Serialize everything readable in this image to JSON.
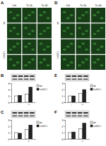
{
  "panel_labels": [
    "A",
    "B",
    "C",
    "D",
    "E",
    "F"
  ],
  "micrographs": [
    {
      "columns": [
        "Ctrl",
        "Tx 1h",
        "Tx 4h"
      ],
      "rows": [
        "wt",
        "Lrrk2-/-"
      ]
    },
    {
      "columns": [
        "Ctrl",
        "Tx 1h",
        "Tx 4h"
      ],
      "rows": [
        "wt",
        "Lrrk2-/-"
      ]
    }
  ],
  "chart_data": [
    {
      "type": "bar",
      "categories": [
        "-",
        "+"
      ],
      "series": [
        {
          "name": "wt",
          "color": "#ffffff",
          "values": [
            1.0,
            1.3
          ]
        },
        {
          "name": "Lrrk2-/-",
          "color": "#222222",
          "values": [
            1.1,
            2.4
          ]
        }
      ],
      "ylim": [
        0,
        3
      ],
      "yticks": [
        0,
        1,
        2,
        3
      ],
      "legend": "upper right"
    },
    {
      "type": "bar",
      "categories": [
        "-",
        "+"
      ],
      "series": [
        {
          "name": "wt",
          "color": "#ffffff",
          "values": [
            1.0,
            1.5
          ]
        },
        {
          "name": "Lrrk2-/-",
          "color": "#222222",
          "values": [
            0.9,
            2.2
          ]
        }
      ],
      "ylim": [
        0,
        3
      ],
      "yticks": [
        0,
        1,
        2,
        3
      ],
      "legend": "upper right"
    },
    {
      "type": "bar",
      "categories": [
        "-",
        "+"
      ],
      "series": [
        {
          "name": "wt",
          "color": "#ffffff",
          "values": [
            1.0,
            1.4
          ]
        },
        {
          "name": "Lrrk2-/-",
          "color": "#222222",
          "values": [
            1.0,
            2.0
          ]
        }
      ],
      "ylim": [
        0,
        3
      ],
      "yticks": [
        0,
        1,
        2,
        3
      ],
      "legend": "upper right"
    },
    {
      "type": "bar",
      "categories": [
        "-",
        "+"
      ],
      "series": [
        {
          "name": "wt",
          "color": "#ffffff",
          "values": [
            1.0,
            1.6
          ]
        },
        {
          "name": "Lrrk2-/-",
          "color": "#222222",
          "values": [
            1.1,
            2.5
          ]
        }
      ],
      "ylim": [
        0,
        3
      ],
      "yticks": [
        0,
        1,
        2,
        3
      ],
      "legend": "upper right"
    }
  ]
}
